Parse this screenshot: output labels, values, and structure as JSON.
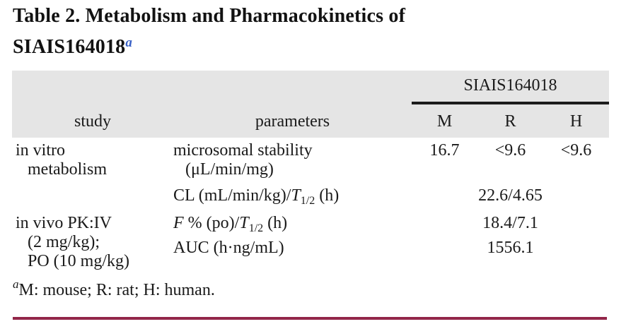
{
  "colors": {
    "accent_rule": "#932649",
    "header_band_bg": "#E5E5E5",
    "title_superscript_blue": "#3A62C6",
    "text": "#1A1A1A"
  },
  "title": {
    "line1": "Table 2. Metabolism and Pharmacokinetics of",
    "line2_compound": "SIAIS164018",
    "superscript": "a"
  },
  "table": {
    "group_header": "SIAIS164018",
    "col_study": "study",
    "col_parameters": "parameters",
    "col_m": "M",
    "col_r": "R",
    "col_h": "H",
    "in_vitro": {
      "study_line1": "in vitro",
      "study_line2": "metabolism",
      "microsomal_line1": "microsomal stability",
      "microsomal_line2": "(μL/min/mg)",
      "microsomal_m": "16.7",
      "microsomal_r": "<9.6",
      "microsomal_h": "<9.6",
      "cl_prefix": "CL (mL/min/kg)/",
      "cl_t": "T",
      "cl_sub": "1/2",
      "cl_suffix": " (h)",
      "cl_value": "22.6/4.65"
    },
    "in_vivo": {
      "study_line1": "in vivo PK:IV",
      "study_line2": "(2 mg/kg);",
      "study_line3": "PO (10 mg/kg)",
      "f_italic": "F",
      "f_mid": " % (po)/",
      "f_t": "T",
      "f_sub": "1/2",
      "f_suffix": " (h)",
      "f_value": "18.4/7.1",
      "auc_label": "AUC (h·ng/mL)",
      "auc_value": "1556.1"
    }
  },
  "footnote": {
    "superscript": "a",
    "text": "M: mouse; R: rat; H: human."
  }
}
